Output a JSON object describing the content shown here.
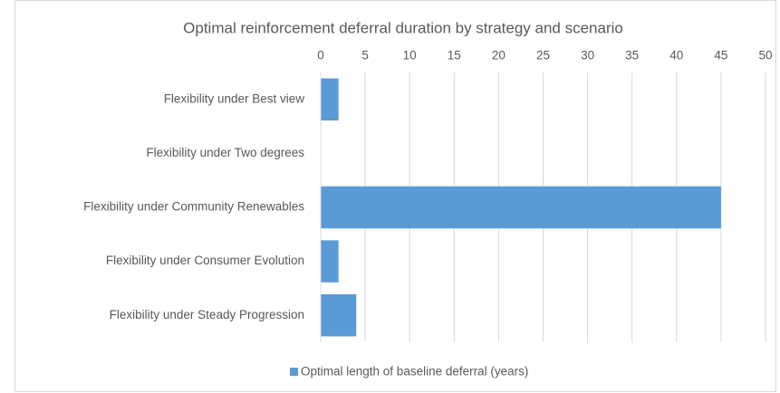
{
  "chart_data": {
    "type": "bar",
    "title": "Optimal reinforcement deferral duration by strategy and scenario",
    "categories": [
      "Flexibility under Best view",
      "Flexibility under Two degrees",
      "Flexibility under Community Renewables",
      "Flexibility under Consumer Evolution",
      "Flexibility under Steady Progression"
    ],
    "series": [
      {
        "name": "Optimal length of baseline deferral (years)",
        "color": "#5b9bd5",
        "values": [
          2,
          0,
          45,
          2,
          4
        ]
      }
    ],
    "xlim": [
      0,
      50
    ],
    "xticks": [
      0,
      5,
      10,
      15,
      20,
      25,
      30,
      35,
      40,
      45,
      50
    ],
    "grid": true
  }
}
